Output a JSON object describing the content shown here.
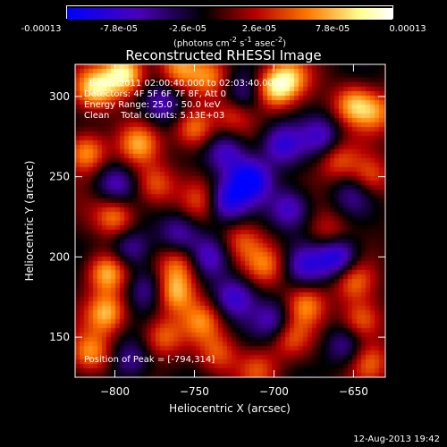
{
  "chart_data": {
    "type": "heatmap",
    "title": "Reconstructed RHESSI Image",
    "xlabel": "Heliocentric X (arcsec)",
    "ylabel": "Heliocentric Y (arcsec)",
    "xlim": [
      -825,
      -630
    ],
    "ylim": [
      125,
      320
    ],
    "xticks": [
      -800,
      -750,
      -700,
      -650
    ],
    "yticks": [
      150,
      200,
      250,
      300
    ],
    "colorbar": {
      "ticks": [
        "-0.00013",
        "-7.8e-05",
        "-2.6e-05",
        "2.6e-05",
        "7.8e-05",
        "0.00013"
      ],
      "unit_html": "(photons cm<sup>-2</sup> s<sup>-1</sup> asec<sup>-2</sup>)",
      "range": [
        -0.00013,
        0.00013
      ]
    },
    "annotations": {
      "time_range": "8-Nov-2011 02:00:40.000 to 02:03:40.000",
      "detectors": "Detectors: 4F 5F 6F 7F 8F, Att 0",
      "energy": "Energy Range: 25.0 - 50.0 keV",
      "clean": "Clean    Total counts: 5.13E+03",
      "peak": "Position of Peak = [-794,314]"
    },
    "sources": [
      {
        "x": -794,
        "y": 314,
        "v": 1.0
      },
      {
        "x": -812,
        "y": 305,
        "v": 0.8
      },
      {
        "x": -760,
        "y": 318,
        "v": 0.55
      },
      {
        "x": -740,
        "y": 312,
        "v": 0.5
      },
      {
        "x": -700,
        "y": 305,
        "v": 0.75
      },
      {
        "x": -690,
        "y": 312,
        "v": 0.55
      },
      {
        "x": -650,
        "y": 295,
        "v": 0.7
      },
      {
        "x": -635,
        "y": 290,
        "v": 0.5
      },
      {
        "x": -818,
        "y": 265,
        "v": 0.7
      },
      {
        "x": -785,
        "y": 270,
        "v": 0.6
      },
      {
        "x": -750,
        "y": 280,
        "v": 0.65
      },
      {
        "x": -725,
        "y": 290,
        "v": 0.45
      },
      {
        "x": -775,
        "y": 245,
        "v": 0.5
      },
      {
        "x": -745,
        "y": 235,
        "v": 0.4
      },
      {
        "x": -660,
        "y": 260,
        "v": 0.45
      },
      {
        "x": -640,
        "y": 250,
        "v": 0.5
      },
      {
        "x": -800,
        "y": 225,
        "v": 0.6
      },
      {
        "x": -805,
        "y": 190,
        "v": 0.75
      },
      {
        "x": -760,
        "y": 195,
        "v": 0.55
      },
      {
        "x": -762,
        "y": 178,
        "v": 0.7
      },
      {
        "x": -720,
        "y": 210,
        "v": 0.4
      },
      {
        "x": -705,
        "y": 195,
        "v": 0.5
      },
      {
        "x": -680,
        "y": 170,
        "v": 0.55
      },
      {
        "x": -690,
        "y": 150,
        "v": 0.45
      },
      {
        "x": -805,
        "y": 165,
        "v": 0.7
      },
      {
        "x": -815,
        "y": 140,
        "v": 0.6
      },
      {
        "x": -770,
        "y": 150,
        "v": 0.5
      },
      {
        "x": -745,
        "y": 160,
        "v": 0.5
      },
      {
        "x": -735,
        "y": 140,
        "v": 0.45
      },
      {
        "x": -650,
        "y": 185,
        "v": 0.5
      },
      {
        "x": -645,
        "y": 160,
        "v": 0.6
      },
      {
        "x": -640,
        "y": 135,
        "v": 0.5
      },
      {
        "x": -710,
        "y": 130,
        "v": 0.4
      },
      {
        "x": -665,
        "y": 215,
        "v": 0.35
      },
      {
        "x": -715,
        "y": 248,
        "v": -0.9
      },
      {
        "x": -695,
        "y": 270,
        "v": -0.6
      },
      {
        "x": -730,
        "y": 235,
        "v": -0.7
      },
      {
        "x": -690,
        "y": 230,
        "v": -0.6
      },
      {
        "x": -660,
        "y": 200,
        "v": -0.8
      },
      {
        "x": -680,
        "y": 195,
        "v": -0.5
      },
      {
        "x": -740,
        "y": 200,
        "v": -0.5
      },
      {
        "x": -725,
        "y": 175,
        "v": -0.6
      },
      {
        "x": -760,
        "y": 215,
        "v": -0.45
      },
      {
        "x": -790,
        "y": 205,
        "v": -0.5
      },
      {
        "x": -780,
        "y": 180,
        "v": -0.45
      },
      {
        "x": -800,
        "y": 245,
        "v": -0.5
      },
      {
        "x": -770,
        "y": 295,
        "v": -0.5
      },
      {
        "x": -730,
        "y": 265,
        "v": -0.55
      },
      {
        "x": -670,
        "y": 275,
        "v": -0.5
      },
      {
        "x": -700,
        "y": 160,
        "v": -0.5
      },
      {
        "x": -655,
        "y": 145,
        "v": -0.4
      },
      {
        "x": -790,
        "y": 135,
        "v": -0.4
      },
      {
        "x": -720,
        "y": 300,
        "v": -0.45
      },
      {
        "x": -650,
        "y": 240,
        "v": -0.35
      }
    ]
  },
  "timestamp": "12-Aug-2013 19:42",
  "colors": {
    "colormap": [
      "#0000ff",
      "#4a00b8",
      "#000000",
      "#b80000",
      "#ff7800",
      "#ffff90",
      "#ffffff"
    ]
  }
}
